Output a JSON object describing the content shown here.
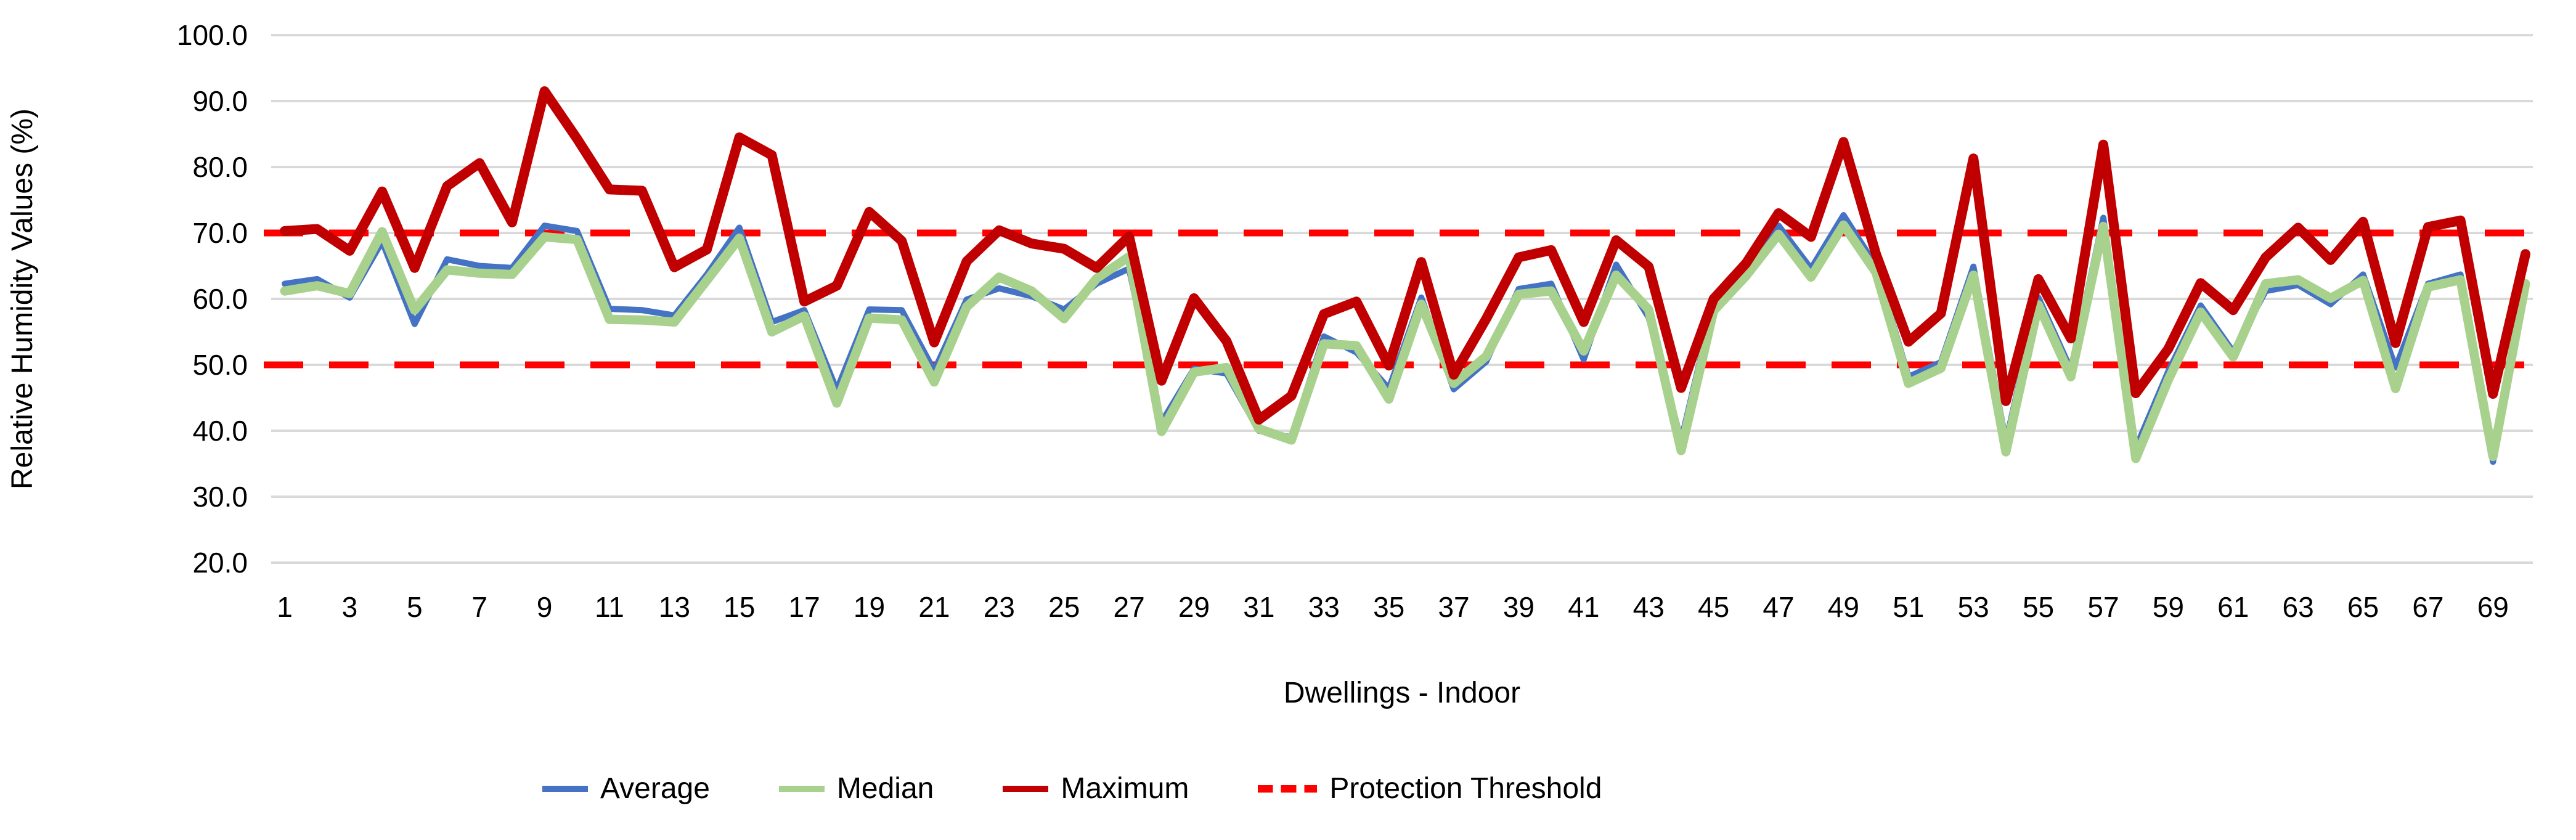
{
  "chart_data": {
    "type": "line",
    "title": "",
    "xlabel": "Dwellings - Indoor",
    "ylabel": "Relative Humidity Values (%)",
    "ylim": [
      20,
      100
    ],
    "y_ticks": [
      100,
      90,
      80,
      70,
      60,
      50,
      40,
      30,
      20
    ],
    "y_tick_decimals": 1,
    "x_count": 70,
    "x_tick_labels": [
      1,
      3,
      5,
      7,
      9,
      11,
      13,
      15,
      17,
      19,
      21,
      23,
      25,
      27,
      29,
      31,
      33,
      35,
      37,
      39,
      41,
      43,
      45,
      47,
      49,
      51,
      53,
      55,
      57,
      59,
      61,
      63,
      65,
      67,
      69
    ],
    "grid": "horizontal",
    "grid_color": "#D9D9D9",
    "legend_position": "bottom",
    "series": [
      {
        "name": "Average",
        "color": "#4472C4",
        "stroke_width": 10,
        "values": [
          62.3,
          63.0,
          60.2,
          68.7,
          56.2,
          66.0,
          65.0,
          64.7,
          71.1,
          70.3,
          58.5,
          58.3,
          57.5,
          63.7,
          70.8,
          56.5,
          58.3,
          46.2,
          58.4,
          58.3,
          49.1,
          59.9,
          61.6,
          60.4,
          58.4,
          62.3,
          64.6,
          41.3,
          49.4,
          48.7,
          40.0,
          39.0,
          54.3,
          51.9,
          46.4,
          60.2,
          46.3,
          50.5,
          61.5,
          62.3,
          50.8,
          65.2,
          57.2,
          38.5,
          59.3,
          64.9,
          71.1,
          64.6,
          72.7,
          65.0,
          48.2,
          50.4,
          64.9,
          38.3,
          60.2,
          49.3,
          72.3,
          37.4,
          49.0,
          59.0,
          52.0,
          61.2,
          62.1,
          59.2,
          63.7,
          49.6,
          62.3,
          63.7,
          35.3,
          61.5
        ]
      },
      {
        "name": "Median",
        "color": "#A9D18E",
        "stroke_width": 15,
        "values": [
          61.2,
          62.0,
          60.8,
          70.2,
          58.3,
          64.4,
          63.9,
          63.7,
          69.4,
          69.0,
          56.9,
          56.8,
          56.5,
          62.8,
          69.2,
          55.0,
          57.4,
          44.2,
          57.1,
          56.8,
          47.4,
          58.8,
          63.3,
          61.2,
          57.0,
          63.1,
          66.4,
          39.9,
          48.9,
          49.6,
          40.3,
          38.6,
          53.2,
          52.9,
          44.8,
          59.2,
          47.2,
          51.3,
          60.7,
          61.2,
          52.1,
          63.6,
          58.4,
          37.0,
          58.2,
          63.5,
          69.8,
          63.3,
          71.2,
          64.0,
          47.2,
          49.5,
          63.6,
          36.8,
          59.1,
          48.2,
          71.0,
          35.8,
          47.7,
          58.0,
          51.2,
          62.3,
          62.9,
          60.1,
          62.8,
          46.4,
          61.8,
          62.9,
          36.1,
          62.3
        ]
      },
      {
        "name": "Maximum",
        "color": "#C00000",
        "stroke_width": 16,
        "values": [
          70.3,
          70.6,
          67.3,
          76.3,
          64.7,
          77.1,
          80.6,
          71.6,
          91.5,
          84.3,
          76.6,
          76.4,
          64.8,
          67.5,
          84.5,
          81.8,
          59.6,
          62.0,
          73.2,
          68.8,
          53.4,
          65.7,
          70.4,
          68.4,
          67.6,
          64.7,
          69.5,
          47.6,
          60.1,
          53.6,
          41.7,
          45.3,
          57.7,
          59.6,
          49.9,
          65.6,
          48.5,
          57.0,
          66.3,
          67.4,
          56.5,
          68.9,
          64.9,
          46.5,
          60.0,
          65.4,
          73.0,
          69.4,
          83.8,
          66.8,
          53.5,
          57.8,
          81.3,
          44.5,
          63.0,
          54.0,
          83.4,
          45.7,
          52.4,
          62.4,
          58.3,
          66.3,
          70.8,
          65.9,
          71.7,
          53.3,
          70.9,
          71.9,
          45.6,
          66.8
        ]
      },
      {
        "name": "Protection Threshold",
        "color": "#FF0000",
        "stroke_width": 11,
        "style": "dashed",
        "dash_pattern": [
          64,
          42
        ],
        "threshold_values": [
          70,
          50
        ]
      }
    ]
  }
}
